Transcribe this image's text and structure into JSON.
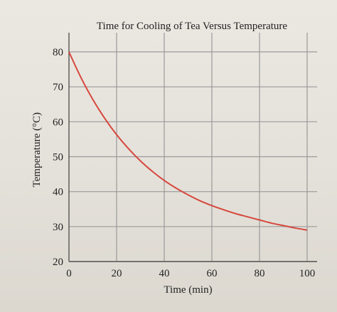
{
  "chart_data": {
    "type": "line",
    "title": "Time for Cooling of Tea Versus Temperature",
    "xlabel": "Time (min)",
    "ylabel": "Temperature (°C)",
    "xlim": [
      0,
      100
    ],
    "ylim": [
      20,
      80
    ],
    "x_ticks": [
      0,
      20,
      40,
      60,
      80,
      100
    ],
    "y_ticks": [
      20,
      30,
      40,
      50,
      60,
      70,
      80
    ],
    "grid": true,
    "series": [
      {
        "color": "#d6473d",
        "x": [
          0,
          5,
          10,
          15,
          20,
          25,
          30,
          35,
          40,
          45,
          50,
          55,
          60,
          65,
          70,
          75,
          80,
          85,
          90,
          95,
          100
        ],
        "y": [
          80,
          72.7,
          66.4,
          61,
          56.3,
          52.3,
          48.8,
          45.8,
          43.2,
          41,
          39.1,
          37.4,
          36,
          34.8,
          33.7,
          32.8,
          31.9,
          31,
          30.3,
          29.6,
          29
        ]
      }
    ]
  }
}
